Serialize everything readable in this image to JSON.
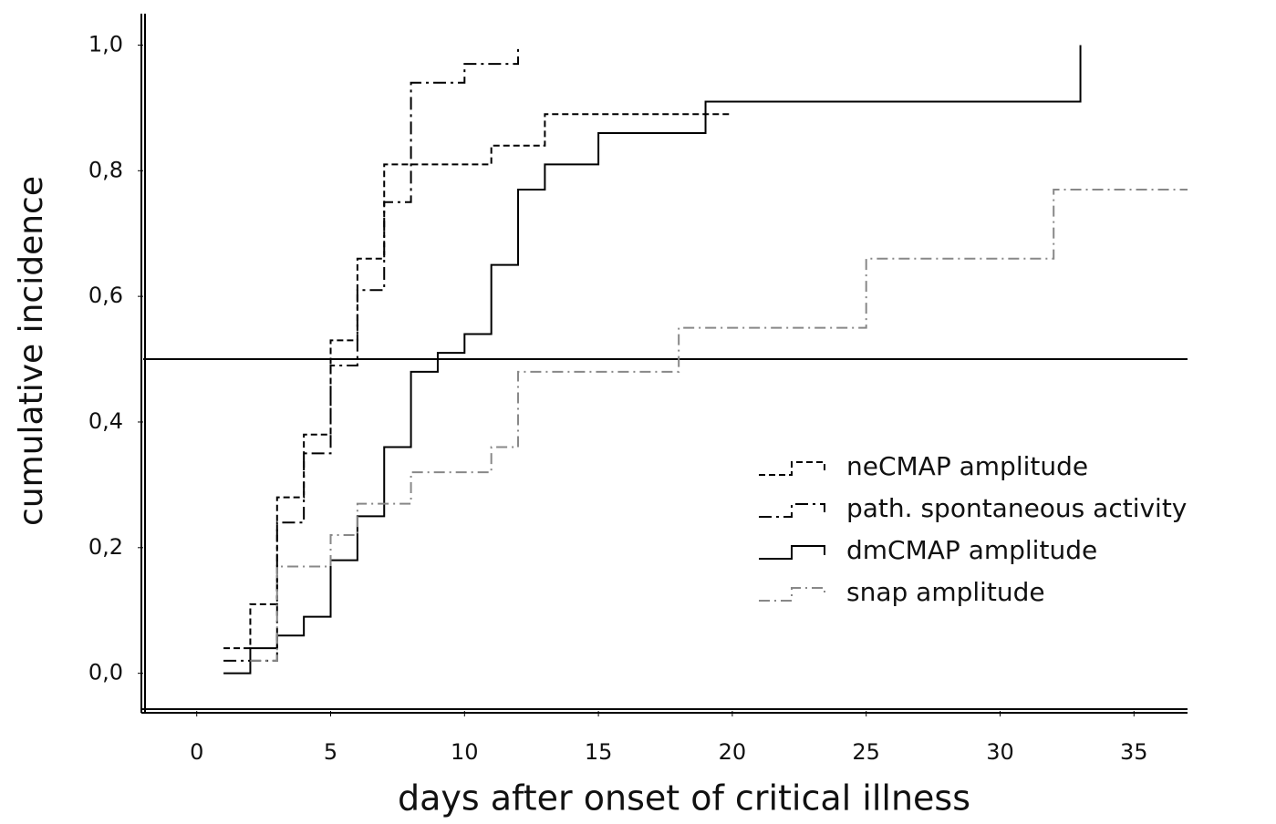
{
  "chart_data": {
    "type": "step",
    "xlabel": "days after onset of critical illness",
    "ylabel": "cumulative incidence",
    "xlim": [
      -2,
      37
    ],
    "ylim": [
      -0.06,
      1.05
    ],
    "xticks": [
      0,
      5,
      10,
      15,
      20,
      25,
      30,
      35
    ],
    "yticks": [
      {
        "value": 0,
        "label": "0,0"
      },
      {
        "value": 0.2,
        "label": "0,2"
      },
      {
        "value": 0.4,
        "label": "0,4"
      },
      {
        "value": 0.6,
        "label": "0,6"
      },
      {
        "value": 0.8,
        "label": "0,8"
      },
      {
        "value": 1.0,
        "label": "1,0"
      }
    ],
    "reference_line": 0.5,
    "legend": "right",
    "series": [
      {
        "name": "neCMAP amplitude",
        "color": "#000000",
        "linestyle": "dashed",
        "x": [
          1,
          2,
          3,
          4,
          5,
          6,
          7,
          8,
          11,
          13,
          20
        ],
        "values": [
          0.04,
          0.11,
          0.28,
          0.38,
          0.53,
          0.66,
          0.81,
          0.81,
          0.84,
          0.89,
          0.89
        ]
      },
      {
        "name": "path. spontaneous activity",
        "color": "#000000",
        "linestyle": "longdash",
        "x": [
          1,
          3,
          4,
          5,
          6,
          7,
          8,
          10,
          12
        ],
        "values": [
          0.02,
          0.24,
          0.35,
          0.49,
          0.61,
          0.75,
          0.94,
          0.97,
          1.0
        ]
      },
      {
        "name": "dmCMAP amplitude",
        "color": "#000000",
        "linestyle": "solid",
        "x": [
          1,
          2,
          3,
          4,
          5,
          6,
          7,
          8,
          9,
          10,
          11,
          12,
          13,
          15,
          19,
          33
        ],
        "values": [
          0.0,
          0.04,
          0.06,
          0.09,
          0.18,
          0.25,
          0.36,
          0.48,
          0.51,
          0.54,
          0.65,
          0.77,
          0.81,
          0.86,
          0.91,
          1.0
        ]
      },
      {
        "name": "snap amplitude",
        "color": "#888888",
        "linestyle": "dashdot",
        "x": [
          2,
          3,
          5,
          6,
          8,
          11,
          12,
          18,
          25,
          32,
          37
        ],
        "values": [
          0.02,
          0.17,
          0.22,
          0.27,
          0.32,
          0.36,
          0.48,
          0.55,
          0.66,
          0.77,
          0.77
        ]
      }
    ]
  }
}
